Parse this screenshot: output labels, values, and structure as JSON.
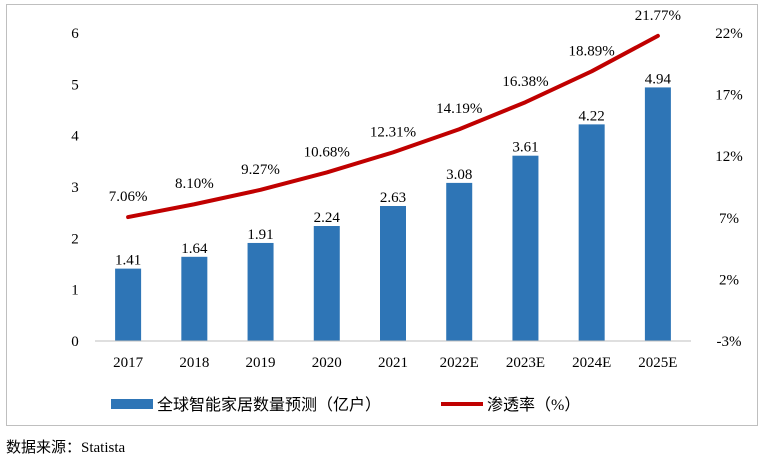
{
  "chart_data": {
    "type": "bar+line",
    "categories": [
      "2017",
      "2018",
      "2019",
      "2020",
      "2021",
      "2022E",
      "2023E",
      "2024E",
      "2025E"
    ],
    "series": [
      {
        "name": "全球智能家居数量预测（亿户）",
        "type": "bar",
        "axis": "left",
        "color": "#2e75b6",
        "values": [
          1.41,
          1.64,
          1.91,
          2.24,
          2.63,
          3.08,
          3.61,
          4.22,
          4.94
        ],
        "labels": [
          "1.41",
          "1.64",
          "1.91",
          "2.24",
          "2.63",
          "3.08",
          "3.61",
          "4.22",
          "4.94"
        ]
      },
      {
        "name": "渗透率（%）",
        "type": "line",
        "axis": "right",
        "color": "#c00000",
        "values": [
          7.06,
          8.1,
          9.27,
          10.68,
          12.31,
          14.19,
          16.38,
          18.89,
          21.77
        ],
        "labels": [
          "7.06%",
          "8.10%",
          "9.27%",
          "10.68%",
          "12.31%",
          "14.19%",
          "16.38%",
          "18.89%",
          "21.77%"
        ]
      }
    ],
    "y_left": {
      "range": [
        0,
        6
      ],
      "ticks": [
        "0",
        "1",
        "2",
        "3",
        "4",
        "5",
        "6"
      ]
    },
    "y_right": {
      "range": [
        -3,
        22
      ],
      "ticks": [
        "-3%",
        "2%",
        "7%",
        "12%",
        "17%",
        "22%"
      ],
      "tick_values": [
        -3,
        2,
        7,
        12,
        17,
        22
      ]
    },
    "grid": false,
    "legend": "bottom"
  },
  "source_text": "数据来源：Statista"
}
